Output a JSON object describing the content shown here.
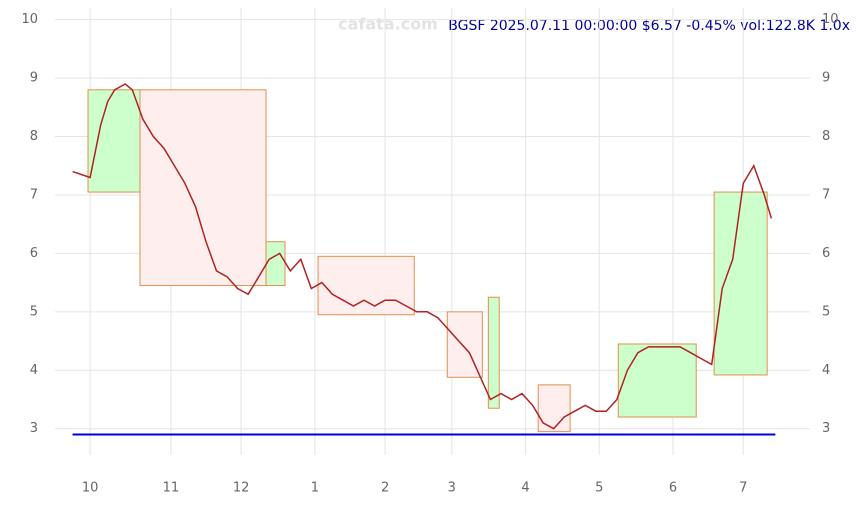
{
  "chart_data": {
    "type": "line",
    "title": "BGSF 2025.07.11 00:00:00 $6.57 -0.45% vol:122.8K 1.0x",
    "watermark": "cafata.com",
    "x": [
      0,
      5,
      8,
      10,
      12,
      15,
      17,
      20,
      23,
      26,
      29,
      32,
      35,
      38,
      41,
      44,
      47,
      50,
      53,
      56,
      59,
      62,
      65,
      68,
      71,
      74,
      77,
      80,
      83,
      86,
      89,
      92,
      95,
      98,
      101,
      104,
      107,
      110,
      113,
      116,
      119,
      122,
      125,
      128,
      131,
      134,
      137,
      140,
      143,
      146,
      149,
      152,
      155,
      158,
      161,
      164,
      167,
      170,
      173,
      176,
      179,
      182,
      185,
      188,
      191,
      194,
      197,
      199
    ],
    "series": [
      {
        "name": "BGSF",
        "color": "#b22222",
        "values": [
          7.4,
          7.3,
          8.2,
          8.6,
          8.8,
          8.9,
          8.8,
          8.3,
          8.0,
          7.8,
          7.5,
          7.2,
          6.8,
          6.2,
          5.7,
          5.6,
          5.4,
          5.3,
          5.6,
          5.9,
          6.0,
          5.7,
          5.9,
          5.4,
          5.5,
          5.3,
          5.2,
          5.1,
          5.2,
          5.1,
          5.2,
          5.2,
          5.1,
          5.0,
          5.0,
          4.9,
          4.7,
          4.5,
          4.3,
          3.9,
          3.5,
          3.6,
          3.5,
          3.6,
          3.4,
          3.1,
          3.0,
          3.2,
          3.3,
          3.4,
          3.3,
          3.3,
          3.5,
          4.0,
          4.3,
          4.4,
          4.4,
          4.4,
          4.4,
          4.3,
          4.2,
          4.1,
          5.4,
          5.9,
          7.2,
          7.5,
          7.0,
          6.6
        ]
      }
    ],
    "support": {
      "value": 2.9,
      "color": "#0000cc"
    },
    "boxes": [
      {
        "x": [
          4.4,
          19.2
        ],
        "y": [
          7.05,
          8.8
        ],
        "color": "#ccffcc"
      },
      {
        "x": [
          19.2,
          55.1
        ],
        "y": [
          5.45,
          8.8
        ],
        "color": "#ffeeee"
      },
      {
        "x": [
          55.1,
          60.5
        ],
        "y": [
          5.45,
          6.2
        ],
        "color": "#ccffcc"
      },
      {
        "x": [
          69.9,
          97.3
        ],
        "y": [
          4.95,
          5.95
        ],
        "color": "#ffeeee"
      },
      {
        "x": [
          106.7,
          116.7
        ],
        "y": [
          3.88,
          5.0
        ],
        "color": "#ffeeee"
      },
      {
        "x": [
          118.4,
          121.5
        ],
        "y": [
          3.35,
          5.25
        ],
        "color": "#ccffcc"
      },
      {
        "x": [
          132.6,
          141.7
        ],
        "y": [
          2.95,
          3.75
        ],
        "color": "#ffeeee"
      },
      {
        "x": [
          155.4,
          177.6
        ],
        "y": [
          3.2,
          4.45
        ],
        "color": "#ccffcc"
      },
      {
        "x": [
          182.7,
          197.8
        ],
        "y": [
          3.92,
          7.05
        ],
        "color": "#ccffcc"
      }
    ],
    "xlim": [
      -5,
      210
    ],
    "xticks": [
      {
        "value": 5,
        "label": "10"
      },
      {
        "value": 28,
        "label": "11"
      },
      {
        "value": 48,
        "label": "12"
      },
      {
        "value": 69,
        "label": "1"
      },
      {
        "value": 89,
        "label": "2"
      },
      {
        "value": 108,
        "label": "3"
      },
      {
        "value": 129,
        "label": "4"
      },
      {
        "value": 150,
        "label": "5"
      },
      {
        "value": 171,
        "label": "6"
      },
      {
        "value": 191,
        "label": "7"
      }
    ],
    "ylim": [
      2.55,
      10.2
    ],
    "yticks": [
      3,
      4,
      5,
      6,
      7,
      8,
      9,
      10
    ],
    "grid": true
  }
}
